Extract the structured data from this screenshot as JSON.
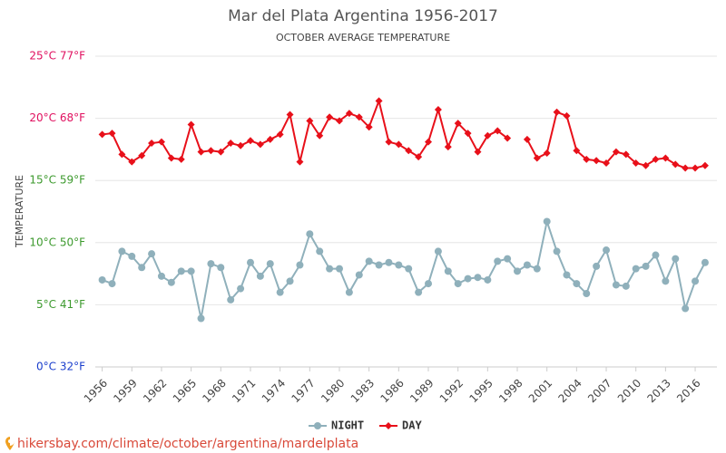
{
  "chart_data": {
    "type": "line",
    "title": "Mar del Plata Argentina 1956-2017",
    "subtitle": "OCTOBER AVERAGE TEMPERATURE",
    "y_label": "TEMPERATURE",
    "footer": "hikersbay.com/climate/october/argentina/mardelplata",
    "x": [
      1956,
      1957,
      1958,
      1959,
      1960,
      1961,
      1962,
      1963,
      1964,
      1965,
      1966,
      1967,
      1968,
      1969,
      1970,
      1971,
      1972,
      1973,
      1974,
      1975,
      1976,
      1977,
      1978,
      1979,
      1980,
      1981,
      1982,
      1983,
      1984,
      1985,
      1986,
      1987,
      1988,
      1989,
      1990,
      1991,
      1992,
      1993,
      1994,
      1995,
      1996,
      1997,
      1998,
      1999,
      2000,
      2001,
      2002,
      2003,
      2004,
      2005,
      2006,
      2007,
      2008,
      2009,
      2010,
      2011,
      2012,
      2013,
      2014,
      2015,
      2016,
      2017
    ],
    "series": [
      {
        "name": "NIGHT",
        "color": "#8fb0bb",
        "values": [
          7.0,
          6.7,
          9.3,
          8.9,
          8.0,
          9.1,
          7.3,
          6.8,
          7.7,
          7.7,
          3.9,
          8.3,
          8.0,
          5.4,
          6.3,
          8.4,
          7.3,
          8.3,
          6.0,
          6.9,
          8.2,
          10.7,
          9.3,
          7.9,
          7.9,
          6.0,
          7.4,
          8.5,
          8.2,
          8.4,
          8.2,
          7.9,
          6.0,
          6.7,
          9.3,
          7.7,
          6.7,
          7.1,
          7.2,
          7.0,
          8.5,
          8.7,
          7.7,
          8.2,
          7.9,
          11.7,
          9.3,
          7.4,
          6.7,
          5.9,
          8.1,
          9.4,
          6.6,
          6.5,
          7.9,
          8.1,
          9.0,
          6.9,
          8.7,
          4.7,
          6.9,
          8.4
        ]
      },
      {
        "name": "DAY",
        "color": "#e8101a",
        "values": [
          18.7,
          18.8,
          17.1,
          16.5,
          17.0,
          18.0,
          18.1,
          16.8,
          16.7,
          19.5,
          17.3,
          17.4,
          17.3,
          18.0,
          17.8,
          18.2,
          17.9,
          18.3,
          18.7,
          20.3,
          16.5,
          19.8,
          18.6,
          20.1,
          19.8,
          20.4,
          20.1,
          19.3,
          21.4,
          18.1,
          17.9,
          17.4,
          16.9,
          18.1,
          20.7,
          17.7,
          19.6,
          18.8,
          17.3,
          18.6,
          19.0,
          18.4,
          null,
          18.3,
          16.8,
          17.2,
          20.5,
          20.2,
          17.4,
          16.7,
          16.6,
          16.4,
          17.3,
          17.1,
          16.4,
          16.2,
          16.7,
          16.8,
          16.3,
          16.0,
          16.0,
          16.2
        ]
      }
    ],
    "xlim": [
      1955.3,
      2018.2
    ],
    "xticks": [
      1956,
      1959,
      1962,
      1965,
      1968,
      1971,
      1974,
      1977,
      1980,
      1983,
      1986,
      1989,
      1992,
      1995,
      1998,
      2001,
      2004,
      2007,
      2010,
      2013,
      2016
    ],
    "ylim": [
      0,
      25
    ],
    "yticks": [
      {
        "value": 0,
        "label": "0°C 32°F"
      },
      {
        "value": 5,
        "label": "5°C 41°F"
      },
      {
        "value": 10,
        "label": "10°C 50°F"
      },
      {
        "value": 15,
        "label": "15°C 59°F"
      },
      {
        "value": 20,
        "label": "20°C 68°F"
      },
      {
        "value": 25,
        "label": "25°C 77°F"
      }
    ],
    "ytick_colors": [
      "#1a3ecc",
      "#3d9a2e",
      "#3d9a2e",
      "#3d9a2e",
      "#e0105f",
      "#e0105f"
    ],
    "grid": true,
    "legend": "bottom"
  }
}
